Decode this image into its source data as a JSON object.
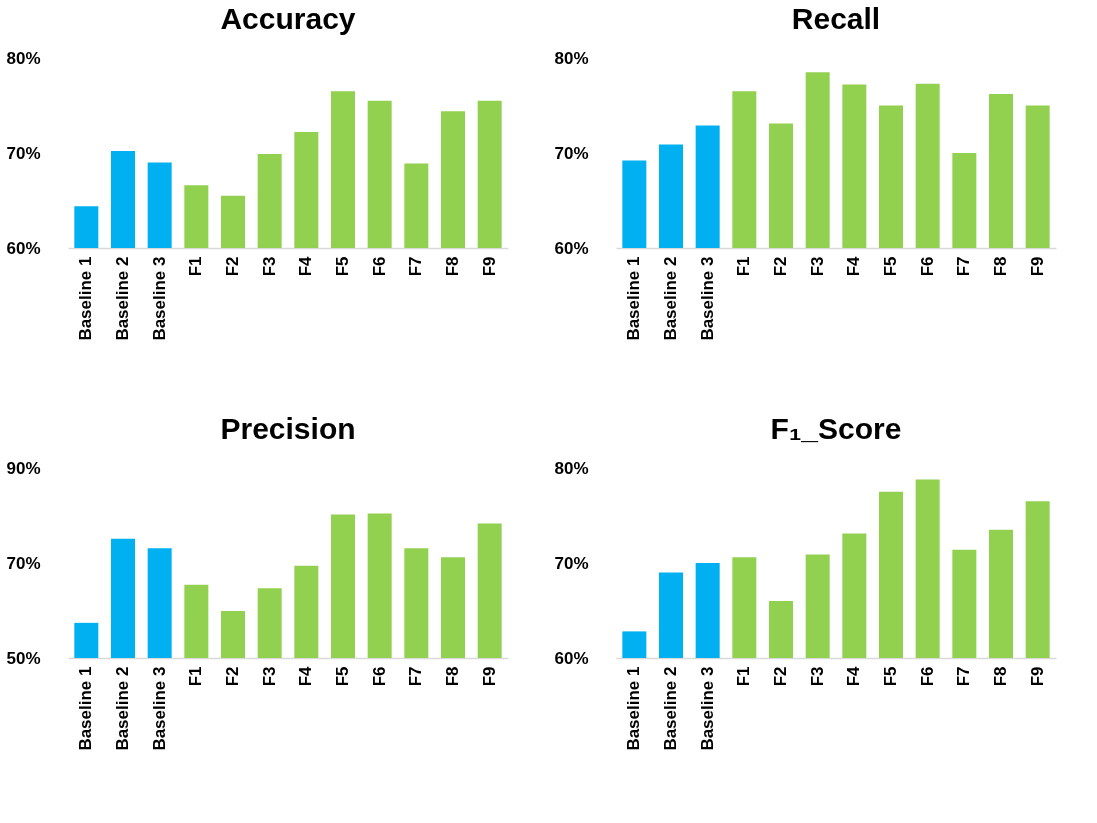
{
  "chart_data": [
    {
      "type": "bar",
      "title": "Accuracy",
      "categories": [
        "Baseline 1",
        "Baseline 2",
        "Baseline 3",
        "F1",
        "F2",
        "F3",
        "F4",
        "F5",
        "F6",
        "F7",
        "F8",
        "F9"
      ],
      "values": [
        64.4,
        70.2,
        69.0,
        66.6,
        65.5,
        69.9,
        72.2,
        76.5,
        75.5,
        68.9,
        74.4,
        75.5
      ],
      "colors": [
        "#00b0f0",
        "#00b0f0",
        "#00b0f0",
        "#92d050",
        "#92d050",
        "#92d050",
        "#92d050",
        "#92d050",
        "#92d050",
        "#92d050",
        "#92d050",
        "#92d050"
      ],
      "ylim": [
        60,
        80
      ],
      "yticks": [
        {
          "value": 60,
          "label": "60%"
        },
        {
          "value": 70,
          "label": "70%"
        },
        {
          "value": 80,
          "label": "80%"
        }
      ],
      "grid": false
    },
    {
      "type": "bar",
      "title": "Recall",
      "categories": [
        "Baseline 1",
        "Baseline 2",
        "Baseline 3",
        "F1",
        "F2",
        "F3",
        "F4",
        "F5",
        "F6",
        "F7",
        "F8",
        "F9"
      ],
      "values": [
        69.2,
        70.9,
        72.9,
        76.5,
        73.1,
        78.5,
        77.2,
        75.0,
        77.3,
        70.0,
        76.2,
        75.0
      ],
      "colors": [
        "#00b0f0",
        "#00b0f0",
        "#00b0f0",
        "#92d050",
        "#92d050",
        "#92d050",
        "#92d050",
        "#92d050",
        "#92d050",
        "#92d050",
        "#92d050",
        "#92d050"
      ],
      "ylim": [
        60,
        80
      ],
      "yticks": [
        {
          "value": 60,
          "label": "60%"
        },
        {
          "value": 70,
          "label": "70%"
        },
        {
          "value": 80,
          "label": "80%"
        }
      ],
      "grid": false
    },
    {
      "type": "bar",
      "title": "Precision",
      "categories": [
        "Baseline 1",
        "Baseline 2",
        "Baseline 3",
        "F1",
        "F2",
        "F3",
        "F4",
        "F5",
        "F6",
        "F7",
        "F8",
        "F9"
      ],
      "values": [
        57.4,
        75.1,
        73.1,
        65.4,
        59.9,
        64.7,
        69.4,
        80.2,
        80.4,
        73.1,
        71.2,
        78.3
      ],
      "colors": [
        "#00b0f0",
        "#00b0f0",
        "#00b0f0",
        "#92d050",
        "#92d050",
        "#92d050",
        "#92d050",
        "#92d050",
        "#92d050",
        "#92d050",
        "#92d050",
        "#92d050"
      ],
      "ylim": [
        50,
        90
      ],
      "yticks": [
        {
          "value": 50,
          "label": "50%"
        },
        {
          "value": 70,
          "label": "70%"
        },
        {
          "value": 90,
          "label": "90%"
        }
      ],
      "grid": false
    },
    {
      "type": "bar",
      "title": "F₁_Score",
      "categories": [
        "Baseline 1",
        "Baseline 2",
        "Baseline 3",
        "F1",
        "F2",
        "F3",
        "F4",
        "F5",
        "F6",
        "F7",
        "F8",
        "F9"
      ],
      "values": [
        62.8,
        69.0,
        70.0,
        70.6,
        66.0,
        70.9,
        73.1,
        77.5,
        78.8,
        71.4,
        73.5,
        76.5
      ],
      "colors": [
        "#00b0f0",
        "#00b0f0",
        "#00b0f0",
        "#92d050",
        "#92d050",
        "#92d050",
        "#92d050",
        "#92d050",
        "#92d050",
        "#92d050",
        "#92d050",
        "#92d050"
      ],
      "ylim": [
        60,
        80
      ],
      "yticks": [
        {
          "value": 60,
          "label": "60%"
        },
        {
          "value": 70,
          "label": "70%"
        },
        {
          "value": 80,
          "label": "80%"
        }
      ],
      "grid": false
    }
  ]
}
